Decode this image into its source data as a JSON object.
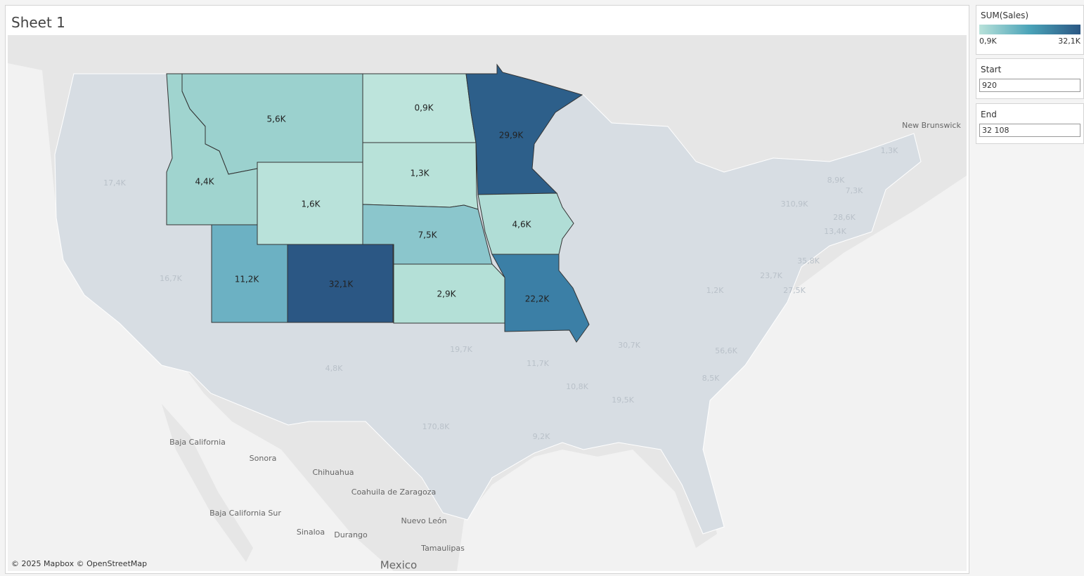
{
  "header": {
    "title": "Sheet 1"
  },
  "legend": {
    "title": "SUM(Sales)",
    "min_label": "0,9K",
    "max_label": "32,1K",
    "colors": [
      "#b9e2da",
      "#4aa3b8",
      "#2b5784"
    ]
  },
  "filters": [
    {
      "label": "Start",
      "value": "920"
    },
    {
      "label": "End",
      "value": "32 108"
    }
  ],
  "map": {
    "highlighted_states": [
      {
        "label": "5,6K",
        "color": "#9bd1ce"
      },
      {
        "label": "4,4K",
        "color": "#a0d4cf"
      },
      {
        "label": "1,6K",
        "color": "#b9e2da"
      },
      {
        "label": "0,9K",
        "color": "#bde4dc"
      },
      {
        "label": "1,3K",
        "color": "#b8e2d9"
      },
      {
        "label": "7,5K",
        "color": "#8bc6cc"
      },
      {
        "label": "2,9K",
        "color": "#b4e0d7"
      },
      {
        "label": "11,2K",
        "color": "#6cb1c3"
      },
      {
        "label": "32,1K",
        "color": "#2b5784"
      },
      {
        "label": "29,9K",
        "color": "#2d5f8a"
      },
      {
        "label": "4,6K",
        "color": "#b0ddd6"
      },
      {
        "label": "22,2K",
        "color": "#3b7fa6"
      }
    ],
    "faded_labels": [
      "17,4K",
      "16,7K",
      "4,8K",
      "19,7K",
      "11,7K",
      "10,8K",
      "19,5K",
      "9,2K",
      "170,8K",
      "30,7K",
      "56,6K",
      "8,5K",
      "1,2K",
      "23,7K",
      "27,5K",
      "35,8K",
      "8,9K",
      "7,3K",
      "1,3K",
      "28,6K",
      "13,4K",
      "310,9K"
    ],
    "place_labels": [
      "Baja California",
      "Sonora",
      "Chihuahua",
      "Coahuila de Zaragoza",
      "Nuevo León",
      "Tamaulipas",
      "Sinaloa",
      "Durango",
      "Baja California Sur",
      "Mexico",
      "New Brunswick"
    ],
    "attribution": "© 2025 Mapbox © OpenStreetMap"
  }
}
